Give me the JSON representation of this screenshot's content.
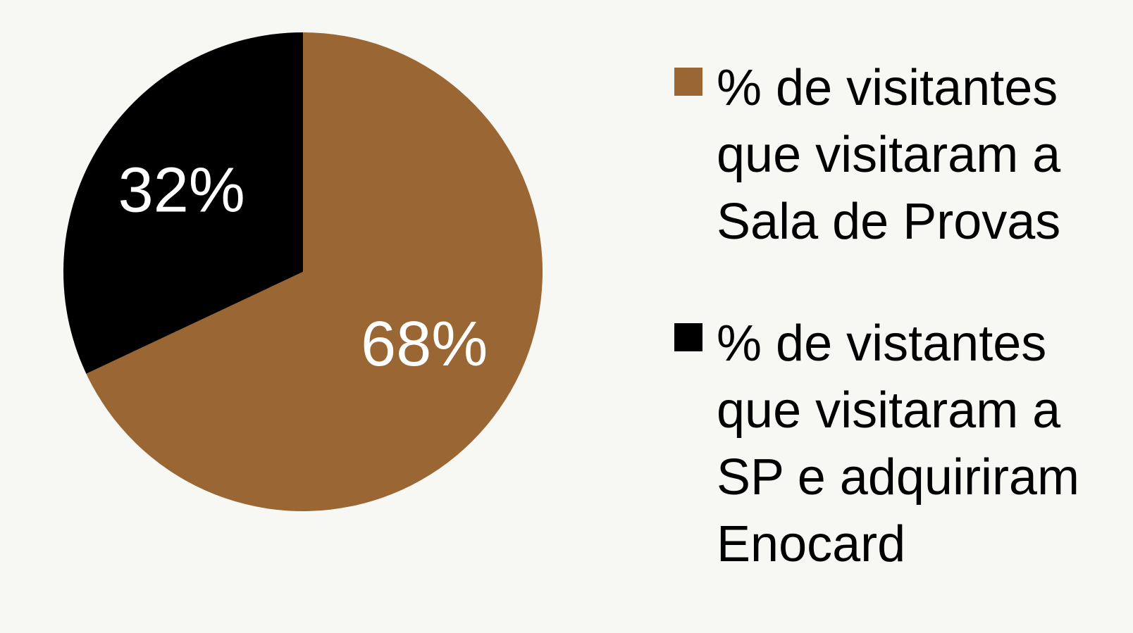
{
  "chart_data": {
    "type": "pie",
    "categories": [
      "% de visitantes que visitaram a Sala de Provas",
      "% de vistantes que visitaram a SP e adquiriram Enocard"
    ],
    "values": [
      68,
      32
    ],
    "value_labels": [
      "68%",
      "32%"
    ],
    "colors": [
      "#996634",
      "#000000"
    ],
    "legend": "right"
  }
}
